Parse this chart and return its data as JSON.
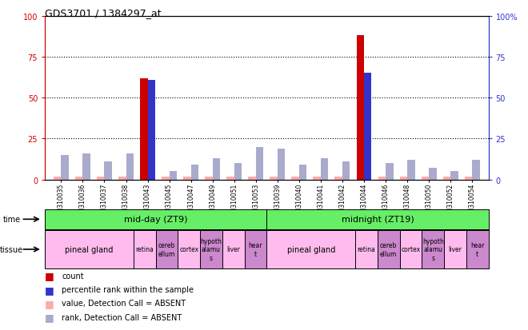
{
  "title": "GDS3701 / 1384297_at",
  "samples": [
    "GSM310035",
    "GSM310036",
    "GSM310037",
    "GSM310038",
    "GSM310043",
    "GSM310045",
    "GSM310047",
    "GSM310049",
    "GSM310051",
    "GSM310053",
    "GSM310039",
    "GSM310040",
    "GSM310041",
    "GSM310042",
    "GSM310044",
    "GSM310046",
    "GSM310048",
    "GSM310050",
    "GSM310052",
    "GSM310054"
  ],
  "count_values": [
    2,
    2,
    2,
    2,
    62,
    2,
    2,
    2,
    2,
    2,
    2,
    2,
    2,
    2,
    88,
    2,
    2,
    2,
    2,
    2
  ],
  "rank_values": [
    15,
    16,
    11,
    16,
    61,
    5,
    9,
    13,
    10,
    20,
    19,
    9,
    13,
    11,
    65,
    10,
    12,
    7,
    5,
    12
  ],
  "count_absent": [
    true,
    true,
    true,
    true,
    false,
    true,
    true,
    true,
    true,
    true,
    true,
    true,
    true,
    true,
    false,
    true,
    true,
    true,
    true,
    true
  ],
  "rank_absent": [
    true,
    true,
    true,
    true,
    false,
    true,
    true,
    true,
    true,
    true,
    true,
    true,
    true,
    true,
    false,
    true,
    true,
    true,
    true,
    true
  ],
  "color_count": "#cc0000",
  "color_rank": "#3333cc",
  "color_count_absent": "#ffaaaa",
  "color_rank_absent": "#aaaacc",
  "ylim": [
    0,
    100
  ],
  "yticks": [
    0,
    25,
    50,
    75,
    100
  ],
  "ytick_labels_left": [
    "0",
    "25",
    "50",
    "75",
    "100"
  ],
  "ytick_labels_right": [
    "0",
    "25",
    "50",
    "75",
    "100%"
  ],
  "bar_width": 0.35,
  "plot_bg": "#ffffff",
  "time_labels": [
    "mid-day (ZT9)",
    "midnight (ZT19)"
  ],
  "time_color": "#66ee66",
  "tissue_defs": [
    {
      "label": "pineal gland",
      "span": 4,
      "color": "#ffbbee"
    },
    {
      "label": "retina",
      "span": 1,
      "color": "#ffbbee"
    },
    {
      "label": "cereb\nellum",
      "span": 1,
      "color": "#cc88cc"
    },
    {
      "label": "cortex",
      "span": 1,
      "color": "#ffbbee"
    },
    {
      "label": "hypoth\nalamu\ns",
      "span": 1,
      "color": "#cc88cc"
    },
    {
      "label": "liver",
      "span": 1,
      "color": "#ffbbee"
    },
    {
      "label": "hear\nt",
      "span": 1,
      "color": "#cc88cc"
    }
  ],
  "legend_items": [
    {
      "color": "#cc0000",
      "label": "count"
    },
    {
      "color": "#3333cc",
      "label": "percentile rank within the sample"
    },
    {
      "color": "#ffaaaa",
      "label": "value, Detection Call = ABSENT"
    },
    {
      "color": "#aaaacc",
      "label": "rank, Detection Call = ABSENT"
    }
  ]
}
